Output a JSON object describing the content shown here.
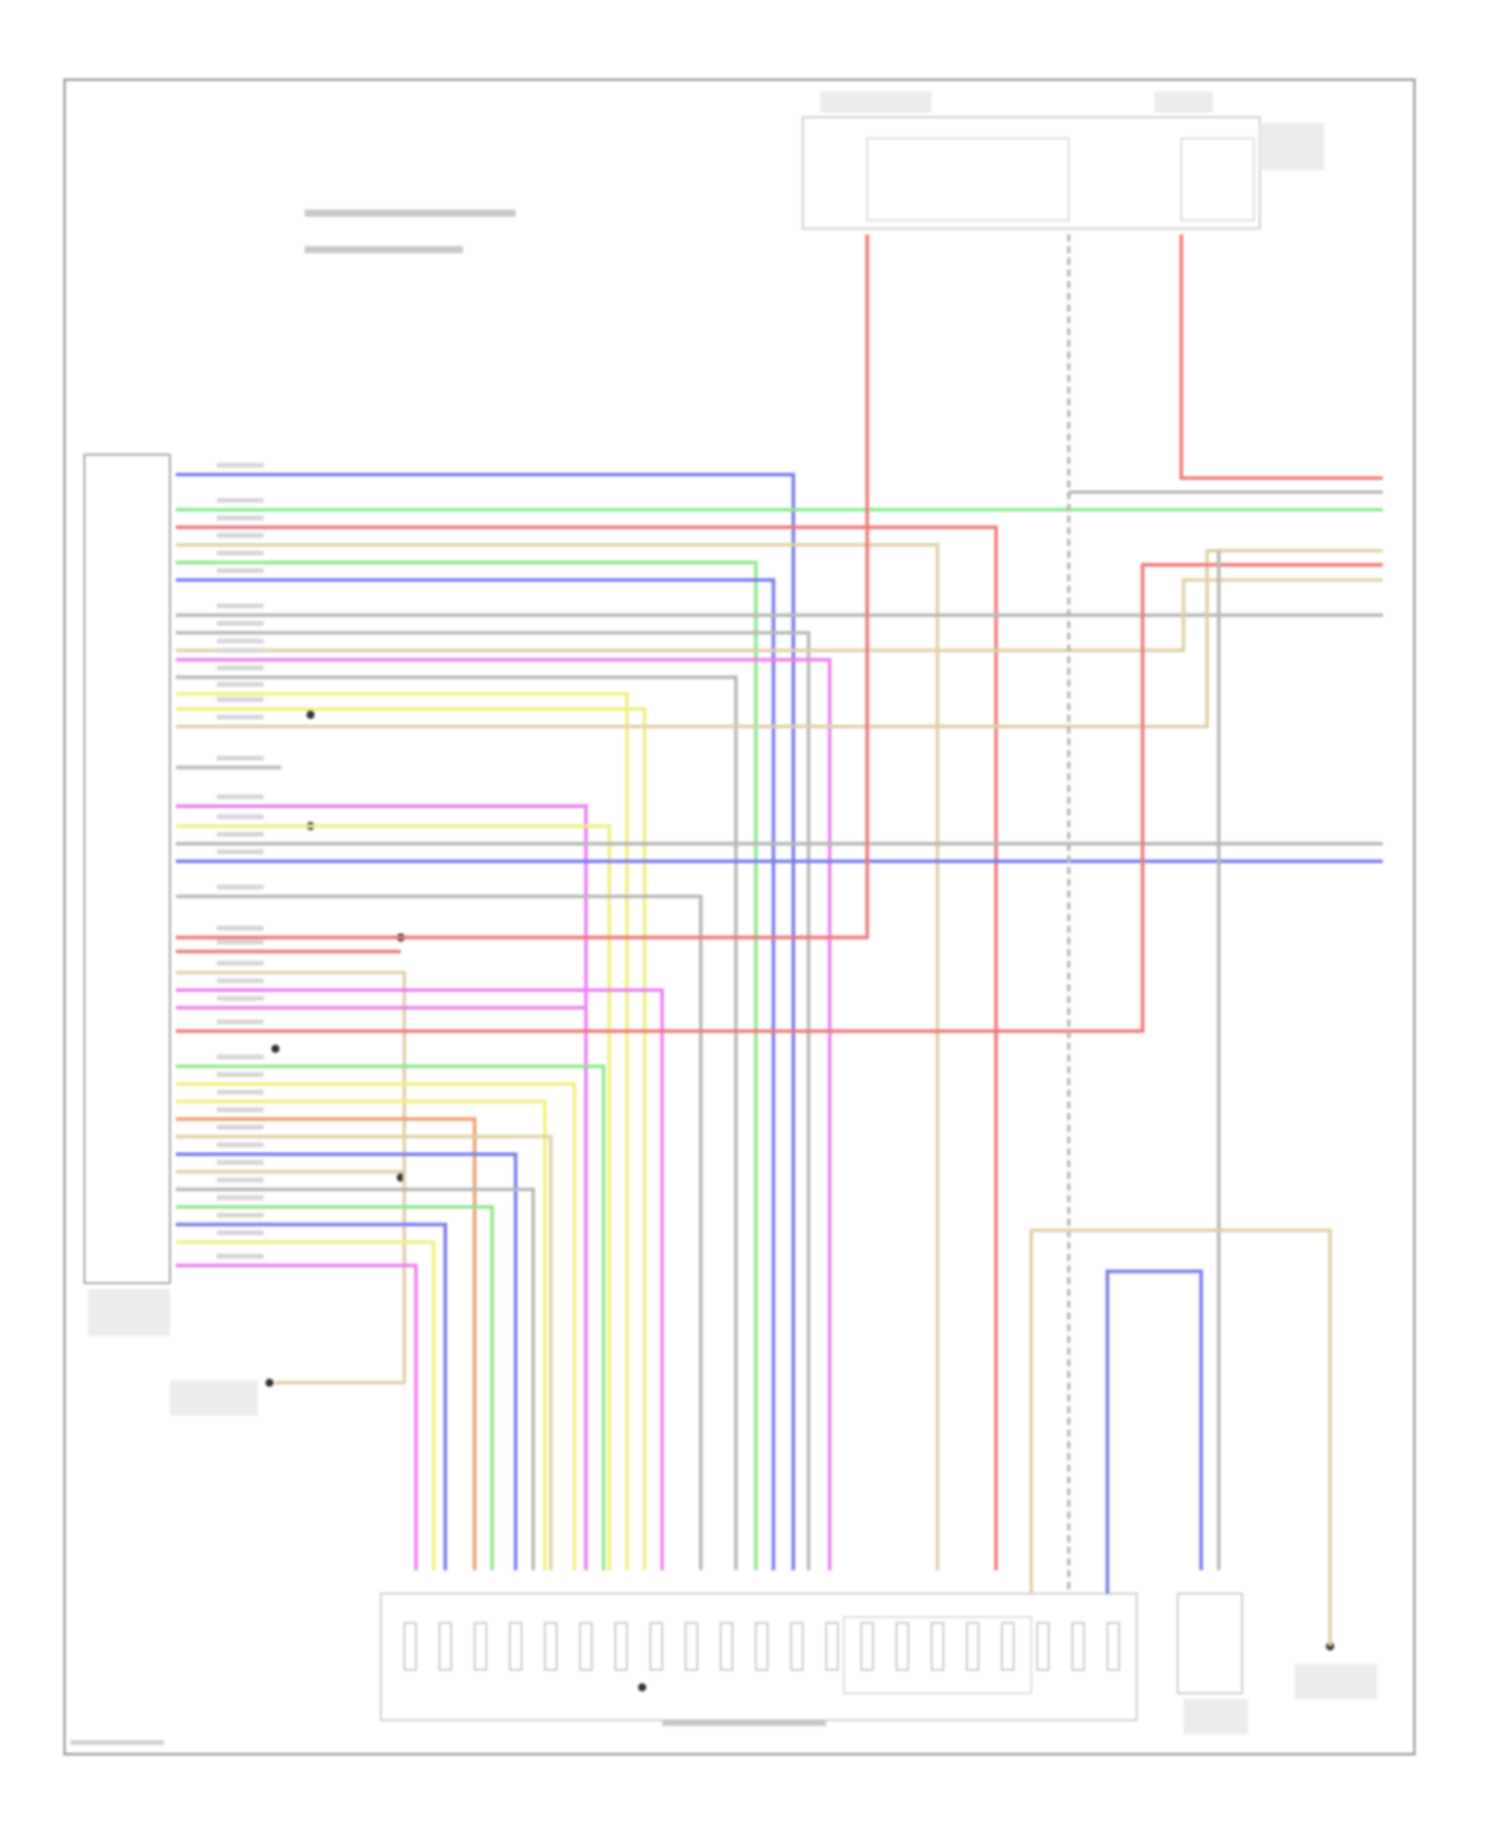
{
  "diagram": {
    "type": "wiring-schematic",
    "wire_colors": {
      "blue": "#7b7bef",
      "green": "#8fe88f",
      "red": "#f07a7a",
      "orange": "#f0a070",
      "tan": "#e0d0a8",
      "gray": "#b8b8b8",
      "magenta": "#ee80ee",
      "yellow": "#eef080"
    },
    "frame_color": "#9a9a9a",
    "label_color": "#9a9a9a"
  }
}
